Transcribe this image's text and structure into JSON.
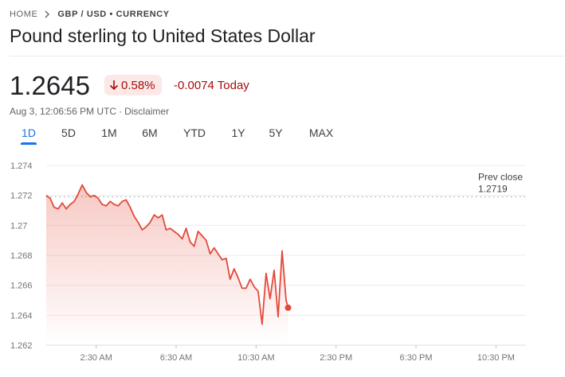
{
  "breadcrumb": {
    "home": "HOME",
    "pair": "GBP / USD • CURRENCY"
  },
  "title": "Pound sterling to United States Dollar",
  "quote": {
    "price": "1.2645",
    "change_percent": "0.58%",
    "change_direction": "down",
    "change_value": "-0.0074 Today",
    "timestamp": "Aug 3, 12:06:56 PM UTC",
    "disclaimer": "Disclaimer"
  },
  "tabs": [
    {
      "label": "1D",
      "active": true
    },
    {
      "label": "5D",
      "active": false
    },
    {
      "label": "1M",
      "active": false
    },
    {
      "label": "6M",
      "active": false
    },
    {
      "label": "YTD",
      "active": false
    },
    {
      "label": "1Y",
      "active": false
    },
    {
      "label": "5Y",
      "active": false
    },
    {
      "label": "MAX",
      "active": false
    }
  ],
  "colors": {
    "negative": "#a50e0e",
    "line": "#e34a3b",
    "accent": "#1a73e8"
  },
  "icons": {
    "breadcrumb_separator": "chevron-right-icon",
    "change_arrow": "arrow-down-icon"
  },
  "chart_data": {
    "type": "area",
    "ylim": [
      1.262,
      1.274
    ],
    "yticks": [
      "1.274",
      "1.272",
      "1.27",
      "1.268",
      "1.266",
      "1.264",
      "1.262"
    ],
    "ytick_values": [
      1.274,
      1.272,
      1.27,
      1.268,
      1.266,
      1.264,
      1.262
    ],
    "xticks": [
      "2:30 AM",
      "6:30 AM",
      "10:30 AM",
      "2:30 PM",
      "6:30 PM",
      "10:30 PM"
    ],
    "xtick_hours": [
      2.5,
      6.5,
      10.5,
      14.5,
      18.5,
      22.5
    ],
    "xlim_hours": [
      0,
      24
    ],
    "prev_close": {
      "label": "Prev close",
      "value": "1.2719",
      "numeric": 1.2719
    },
    "grid": true,
    "series": [
      {
        "x_hours": [
          0,
          0.2,
          0.4,
          0.6,
          0.8,
          1.0,
          1.2,
          1.4,
          1.6,
          1.8,
          2.0,
          2.2,
          2.4,
          2.6,
          2.8,
          3.0,
          3.2,
          3.4,
          3.6,
          3.8,
          4.0,
          4.2,
          4.4,
          4.6,
          4.8,
          5.0,
          5.2,
          5.4,
          5.6,
          5.8,
          6.0,
          6.2,
          6.4,
          6.6,
          6.8,
          7.0,
          7.2,
          7.4,
          7.6,
          7.8,
          8.0,
          8.2,
          8.4,
          8.6,
          8.8,
          9.0,
          9.2,
          9.4,
          9.6,
          9.8,
          10.0,
          10.2,
          10.4,
          10.6,
          10.8,
          11.0,
          11.2,
          11.4,
          11.6,
          11.8,
          12.0,
          12.1
        ],
        "values": [
          1.272,
          1.2718,
          1.2712,
          1.2711,
          1.2715,
          1.2711,
          1.2714,
          1.2716,
          1.2721,
          1.2727,
          1.2722,
          1.2719,
          1.272,
          1.2718,
          1.2714,
          1.2713,
          1.2716,
          1.2714,
          1.2713,
          1.2716,
          1.2717,
          1.2712,
          1.2706,
          1.2702,
          1.2697,
          1.2699,
          1.2702,
          1.2707,
          1.2705,
          1.2707,
          1.2697,
          1.2698,
          1.2696,
          1.2694,
          1.2691,
          1.2698,
          1.2689,
          1.2686,
          1.2696,
          1.2693,
          1.269,
          1.2681,
          1.2685,
          1.2681,
          1.2677,
          1.2678,
          1.2664,
          1.2671,
          1.2665,
          1.2658,
          1.2658,
          1.2664,
          1.2659,
          1.2656,
          1.2634,
          1.2668,
          1.2651,
          1.267,
          1.2639,
          1.2683,
          1.265,
          1.2645
        ]
      }
    ]
  }
}
